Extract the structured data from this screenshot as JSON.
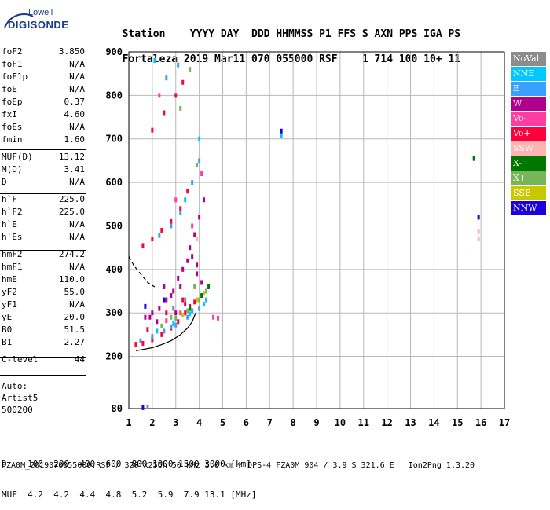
{
  "logo": {
    "line1": "Lowell",
    "line2": "DIGISONDE"
  },
  "header": {
    "row1": [
      "Station",
      "YYYY DAY",
      "DDD",
      "HHMMSS",
      "P1",
      "FFS",
      "S",
      "AXN",
      "PPS",
      "IGA",
      "PS"
    ],
    "row2": [
      "Fortaleza",
      "2019 Mar11",
      "070",
      "055000",
      "RSF",
      "1",
      "714",
      "100",
      "10+",
      "11"
    ]
  },
  "params": [
    {
      "k": "foF2",
      "v": "3.850"
    },
    {
      "k": "foF1",
      "v": "N/A"
    },
    {
      "k": "foF1p",
      "v": "N/A"
    },
    {
      "k": "foE",
      "v": "N/A"
    },
    {
      "k": "foEp",
      "v": "0.37"
    },
    {
      "k": "fxI",
      "v": "4.60"
    },
    {
      "k": "foEs",
      "v": "N/A"
    },
    {
      "k": "fmin",
      "v": "1.60"
    },
    {
      "k": "MUF(D)",
      "v": "13.12"
    },
    {
      "k": "M(D)",
      "v": "3.41"
    },
    {
      "k": "D",
      "v": "N/A"
    },
    {
      "k": "h`F",
      "v": "225.0"
    },
    {
      "k": "h`F2",
      "v": "225.0"
    },
    {
      "k": "h`E",
      "v": "N/A"
    },
    {
      "k": "h`Es",
      "v": "N/A"
    },
    {
      "k": "hmF2",
      "v": "274.2"
    },
    {
      "k": "hmF1",
      "v": "N/A"
    },
    {
      "k": "hmE",
      "v": "110.0"
    },
    {
      "k": "yF2",
      "v": "55.0"
    },
    {
      "k": "yF1",
      "v": "N/A"
    },
    {
      "k": "yE",
      "v": "20.0"
    },
    {
      "k": "B0",
      "v": "51.5"
    },
    {
      "k": "B1",
      "v": "2.27"
    },
    {
      "k": "C-level",
      "v": "44"
    }
  ],
  "auto": {
    "line1": "Auto:",
    "line2": "Artist5",
    "line3": "500200"
  },
  "legend": [
    {
      "label": "NoVal",
      "color": "#8c8c8c"
    },
    {
      "label": "NNE",
      "color": "#00c8ff"
    },
    {
      "label": "E",
      "color": "#3aa0ff"
    },
    {
      "label": "W",
      "color": "#b0008c"
    },
    {
      "label": "Vo-",
      "color": "#ff3ca0"
    },
    {
      "label": "Vo+",
      "color": "#ff003c"
    },
    {
      "label": "SSW",
      "color": "#ffb4b4"
    },
    {
      "label": "X-",
      "color": "#007800"
    },
    {
      "label": "X+",
      "color": "#78b45a"
    },
    {
      "label": "SSE",
      "color": "#c8c800"
    },
    {
      "label": "NNW",
      "color": "#1e00dc"
    }
  ],
  "bottom": {
    "d_label": "D",
    "d_values": [
      "100",
      "200",
      "400",
      "600",
      "800",
      "1000",
      "1500",
      "3000"
    ],
    "d_unit": "[km]",
    "muf_label": "MUF",
    "muf_values": [
      "4.2",
      "4.2",
      "4.4",
      "4.8",
      "5.2",
      "5.9",
      "7.9",
      "13.1"
    ],
    "muf_unit": "[MHz]"
  },
  "footer": "FZA0M_2019070055000.RSF / 320fx256h 50 kHz 5.0 km / DPS-4 FZA0M 904 / 3.9 S 321.6 E   Ion2Png 1.3.20",
  "chart_data": {
    "type": "scatter",
    "xlim": [
      1,
      17
    ],
    "ylim": [
      80,
      900
    ],
    "x_ticks": [
      1,
      2,
      3,
      4,
      5,
      6,
      7,
      8,
      9,
      10,
      11,
      12,
      13,
      14,
      15,
      16,
      17
    ],
    "y_ticks": [
      80,
      200,
      300,
      400,
      500,
      600,
      700,
      800,
      900
    ],
    "grid": true,
    "series": [
      {
        "name": "W",
        "color": "#b0008c",
        "points": [
          [
            1.7,
            290
          ],
          [
            2.0,
            300
          ],
          [
            2.3,
            310
          ],
          [
            2.6,
            330
          ],
          [
            2.9,
            350
          ],
          [
            3.1,
            380
          ],
          [
            3.3,
            400
          ],
          [
            3.5,
            420
          ],
          [
            3.7,
            430
          ],
          [
            3.9,
            410
          ],
          [
            4.1,
            370
          ],
          [
            2.5,
            360
          ],
          [
            2.8,
            340
          ],
          [
            3.2,
            360
          ],
          [
            3.6,
            450
          ],
          [
            3.8,
            480
          ],
          [
            4.0,
            520
          ],
          [
            4.2,
            560
          ],
          [
            3.4,
            320
          ],
          [
            2.2,
            280
          ],
          [
            1.9,
            290
          ],
          [
            3.0,
            300
          ],
          [
            3.9,
            390
          ]
        ]
      },
      {
        "name": "Vo+",
        "color": "#ff003c",
        "points": [
          [
            1.3,
            228
          ],
          [
            1.6,
            230
          ],
          [
            2.0,
            238
          ],
          [
            2.4,
            250
          ],
          [
            2.8,
            265
          ],
          [
            3.1,
            280
          ],
          [
            3.4,
            300
          ],
          [
            3.6,
            315
          ],
          [
            3.8,
            325
          ],
          [
            3.3,
            330
          ],
          [
            2.6,
            300
          ],
          [
            1.8,
            262
          ],
          [
            1.6,
            455
          ],
          [
            2.0,
            470
          ],
          [
            2.4,
            490
          ],
          [
            2.8,
            510
          ],
          [
            3.2,
            540
          ],
          [
            3.5,
            580
          ],
          [
            2.0,
            720
          ],
          [
            2.5,
            760
          ],
          [
            3.0,
            800
          ],
          [
            3.3,
            830
          ]
        ]
      },
      {
        "name": "E",
        "color": "#3aa0ff",
        "points": [
          [
            1.5,
            236
          ],
          [
            2.0,
            246
          ],
          [
            2.5,
            258
          ],
          [
            3.0,
            272
          ],
          [
            3.5,
            290
          ],
          [
            4.0,
            310
          ],
          [
            4.3,
            330
          ],
          [
            3.7,
            305
          ],
          [
            2.8,
            268
          ],
          [
            2.3,
            478
          ],
          [
            2.8,
            500
          ],
          [
            3.2,
            530
          ],
          [
            3.7,
            600
          ],
          [
            4.0,
            650
          ],
          [
            2.6,
            840
          ],
          [
            3.1,
            870
          ]
        ]
      },
      {
        "name": "NNE",
        "color": "#00c8ff",
        "points": [
          [
            2.2,
            258
          ],
          [
            2.9,
            275
          ],
          [
            3.6,
            298
          ],
          [
            4.2,
            320
          ],
          [
            3.4,
            560
          ],
          [
            4.0,
            700
          ],
          [
            2.1,
            880
          ],
          [
            7.5,
            707
          ]
        ]
      },
      {
        "name": "X+",
        "color": "#78b45a",
        "points": [
          [
            2.4,
            270
          ],
          [
            3.0,
            288
          ],
          [
            3.5,
            305
          ],
          [
            4.0,
            330
          ],
          [
            4.3,
            350
          ],
          [
            3.8,
            360
          ],
          [
            2.8,
            290
          ],
          [
            3.9,
            640
          ],
          [
            3.2,
            770
          ],
          [
            3.6,
            860
          ]
        ]
      },
      {
        "name": "X-",
        "color": "#007800",
        "points": [
          [
            3.6,
            310
          ],
          [
            4.1,
            340
          ],
          [
            4.4,
            360
          ],
          [
            15.7,
            655
          ]
        ]
      },
      {
        "name": "SSE",
        "color": "#c8c800",
        "points": [
          [
            3.3,
            295
          ],
          [
            4.2,
            345
          ],
          [
            3.9,
            330
          ]
        ]
      },
      {
        "name": "Vo-",
        "color": "#ff3ca0",
        "points": [
          [
            2.6,
            282
          ],
          [
            3.2,
            300
          ],
          [
            4.6,
            290
          ],
          [
            4.8,
            288
          ],
          [
            3.7,
            500
          ],
          [
            4.1,
            620
          ],
          [
            3.0,
            560
          ],
          [
            2.3,
            800
          ]
        ]
      },
      {
        "name": "SSW",
        "color": "#ffb4b4",
        "points": [
          [
            3.9,
            470
          ],
          [
            15.9,
            487
          ],
          [
            15.9,
            470
          ]
        ]
      },
      {
        "name": "NNW",
        "color": "#1e00dc",
        "points": [
          [
            1.7,
            315
          ],
          [
            2.5,
            330
          ],
          [
            7.5,
            718
          ],
          [
            15.9,
            520
          ],
          [
            1.6,
            82
          ]
        ]
      },
      {
        "name": "NoVal",
        "color": "#8c8c8c",
        "points": [
          [
            1.8,
            84
          ],
          [
            2.9,
            310
          ],
          [
            3.4,
            330
          ]
        ]
      }
    ],
    "virtual_height_curve": [
      [
        1.3,
        213
      ],
      [
        1.6,
        216
      ],
      [
        2.0,
        220
      ],
      [
        2.4,
        227
      ],
      [
        2.8,
        236
      ],
      [
        3.2,
        250
      ],
      [
        3.5,
        265
      ],
      [
        3.7,
        280
      ],
      [
        3.85,
        300
      ]
    ],
    "profile_dashed": [
      [
        1.0,
        430
      ],
      [
        1.2,
        410
      ],
      [
        1.5,
        390
      ],
      [
        1.8,
        370
      ],
      [
        2.1,
        360
      ]
    ]
  }
}
